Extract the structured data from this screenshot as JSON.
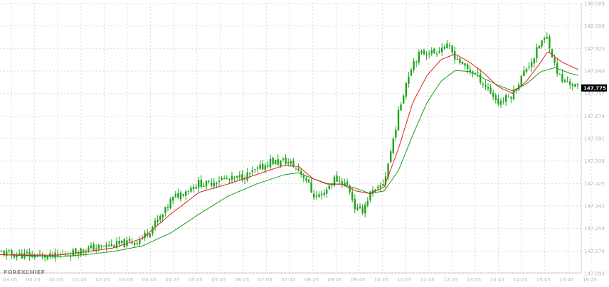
{
  "brand": "FOREXCHIEF",
  "colors": {
    "background": "#ffffff",
    "grid": "#d9d9d9",
    "candle": "#1ea51e",
    "ema_fast": "#e02020",
    "ema_slow": "#1a9e1a",
    "price_tag": "#000000",
    "tick_text": "#b8b8b8"
  },
  "current_price_label": "147.775",
  "chart_data": {
    "type": "candlestick",
    "x_ticks": [
      "03:45",
      "00:25",
      "01:05",
      "01:45",
      "02:25",
      "03:05",
      "03:45",
      "04:25",
      "05:05",
      "05:45",
      "06:25",
      "07:05",
      "07:45",
      "08:25",
      "09:05",
      "09:45",
      "10:25",
      "11:05",
      "11:45",
      "12:25",
      "13:05",
      "13:45",
      "14:25",
      "15:05",
      "15:45",
      "16:25"
    ],
    "y_ticks": [
      "148.089",
      "148.006",
      "147.923",
      "147.840",
      "147.757",
      "147.674",
      "147.591",
      "147.508",
      "147.425",
      "147.342",
      "147.259",
      "147.176",
      "147.093"
    ],
    "ylim": [
      147.093,
      148.089
    ],
    "grid": true,
    "current_price": 147.775,
    "close_path": [
      [
        0,
        147.168
      ],
      [
        10,
        147.164
      ],
      [
        20,
        147.16
      ],
      [
        35,
        147.158
      ],
      [
        50,
        147.157
      ],
      [
        60,
        147.155
      ],
      [
        70,
        147.152
      ],
      [
        80,
        147.155
      ],
      [
        90,
        147.16
      ],
      [
        100,
        147.166
      ],
      [
        110,
        147.175
      ],
      [
        120,
        147.18
      ],
      [
        130,
        147.183
      ],
      [
        140,
        147.188
      ],
      [
        150,
        147.193
      ],
      [
        160,
        147.196
      ],
      [
        170,
        147.198
      ],
      [
        180,
        147.202
      ],
      [
        190,
        147.21
      ],
      [
        200,
        147.222
      ],
      [
        210,
        147.25
      ],
      [
        220,
        147.28
      ],
      [
        230,
        147.31
      ],
      [
        240,
        147.36
      ],
      [
        250,
        147.38
      ],
      [
        260,
        147.395
      ],
      [
        270,
        147.41
      ],
      [
        280,
        147.425
      ],
      [
        290,
        147.418
      ],
      [
        300,
        147.43
      ],
      [
        310,
        147.44
      ],
      [
        320,
        147.437
      ],
      [
        330,
        147.438
      ],
      [
        340,
        147.448
      ],
      [
        350,
        147.455
      ],
      [
        360,
        147.47
      ],
      [
        370,
        147.485
      ],
      [
        380,
        147.505
      ],
      [
        390,
        147.5
      ],
      [
        400,
        147.505
      ],
      [
        410,
        147.495
      ],
      [
        420,
        147.47
      ],
      [
        430,
        147.44
      ],
      [
        440,
        147.38
      ],
      [
        450,
        147.372
      ],
      [
        460,
        147.405
      ],
      [
        470,
        147.44
      ],
      [
        480,
        147.43
      ],
      [
        490,
        147.41
      ],
      [
        500,
        147.325
      ],
      [
        510,
        147.325
      ],
      [
        520,
        147.385
      ],
      [
        530,
        147.395
      ],
      [
        540,
        147.43
      ],
      [
        550,
        147.55
      ],
      [
        560,
        147.68
      ],
      [
        570,
        147.79
      ],
      [
        580,
        147.87
      ],
      [
        590,
        147.9
      ],
      [
        600,
        147.91
      ],
      [
        610,
        147.905
      ],
      [
        620,
        147.925
      ],
      [
        630,
        147.925
      ],
      [
        640,
        147.89
      ],
      [
        650,
        147.86
      ],
      [
        660,
        147.84
      ],
      [
        670,
        147.825
      ],
      [
        680,
        147.79
      ],
      [
        690,
        147.76
      ],
      [
        700,
        147.72
      ],
      [
        710,
        147.735
      ],
      [
        720,
        147.75
      ],
      [
        730,
        147.8
      ],
      [
        740,
        147.85
      ],
      [
        750,
        147.885
      ],
      [
        760,
        147.945
      ],
      [
        770,
        147.96
      ],
      [
        780,
        147.855
      ],
      [
        790,
        147.8
      ],
      [
        800,
        147.795
      ],
      [
        810,
        147.78
      ],
      [
        815,
        147.775
      ]
    ],
    "ema_fast_path": [
      [
        0,
        147.16
      ],
      [
        40,
        147.158
      ],
      [
        80,
        147.158
      ],
      [
        120,
        147.17
      ],
      [
        160,
        147.185
      ],
      [
        200,
        147.22
      ],
      [
        240,
        147.31
      ],
      [
        280,
        147.39
      ],
      [
        320,
        147.42
      ],
      [
        360,
        147.455
      ],
      [
        400,
        147.49
      ],
      [
        420,
        147.485
      ],
      [
        440,
        147.44
      ],
      [
        460,
        147.42
      ],
      [
        480,
        147.42
      ],
      [
        500,
        147.395
      ],
      [
        520,
        147.385
      ],
      [
        540,
        147.41
      ],
      [
        560,
        147.55
      ],
      [
        580,
        147.72
      ],
      [
        600,
        147.82
      ],
      [
        620,
        147.88
      ],
      [
        640,
        147.9
      ],
      [
        660,
        147.87
      ],
      [
        680,
        147.83
      ],
      [
        700,
        147.78
      ],
      [
        720,
        147.755
      ],
      [
        740,
        147.8
      ],
      [
        760,
        147.87
      ],
      [
        770,
        147.91
      ],
      [
        790,
        147.87
      ],
      [
        815,
        147.84
      ]
    ],
    "ema_slow_path": [
      [
        0,
        147.16
      ],
      [
        40,
        147.156
      ],
      [
        80,
        147.152
      ],
      [
        120,
        147.16
      ],
      [
        160,
        147.172
      ],
      [
        200,
        147.192
      ],
      [
        240,
        147.24
      ],
      [
        280,
        147.31
      ],
      [
        320,
        147.375
      ],
      [
        360,
        147.42
      ],
      [
        400,
        147.455
      ],
      [
        420,
        147.462
      ],
      [
        440,
        147.44
      ],
      [
        460,
        147.422
      ],
      [
        480,
        147.42
      ],
      [
        500,
        147.405
      ],
      [
        520,
        147.385
      ],
      [
        540,
        147.395
      ],
      [
        560,
        147.47
      ],
      [
        580,
        147.6
      ],
      [
        600,
        147.72
      ],
      [
        620,
        147.8
      ],
      [
        640,
        147.84
      ],
      [
        660,
        147.835
      ],
      [
        680,
        147.81
      ],
      [
        700,
        147.785
      ],
      [
        720,
        147.765
      ],
      [
        740,
        147.79
      ],
      [
        760,
        147.835
      ],
      [
        780,
        147.85
      ],
      [
        800,
        147.83
      ],
      [
        815,
        147.82
      ]
    ]
  }
}
